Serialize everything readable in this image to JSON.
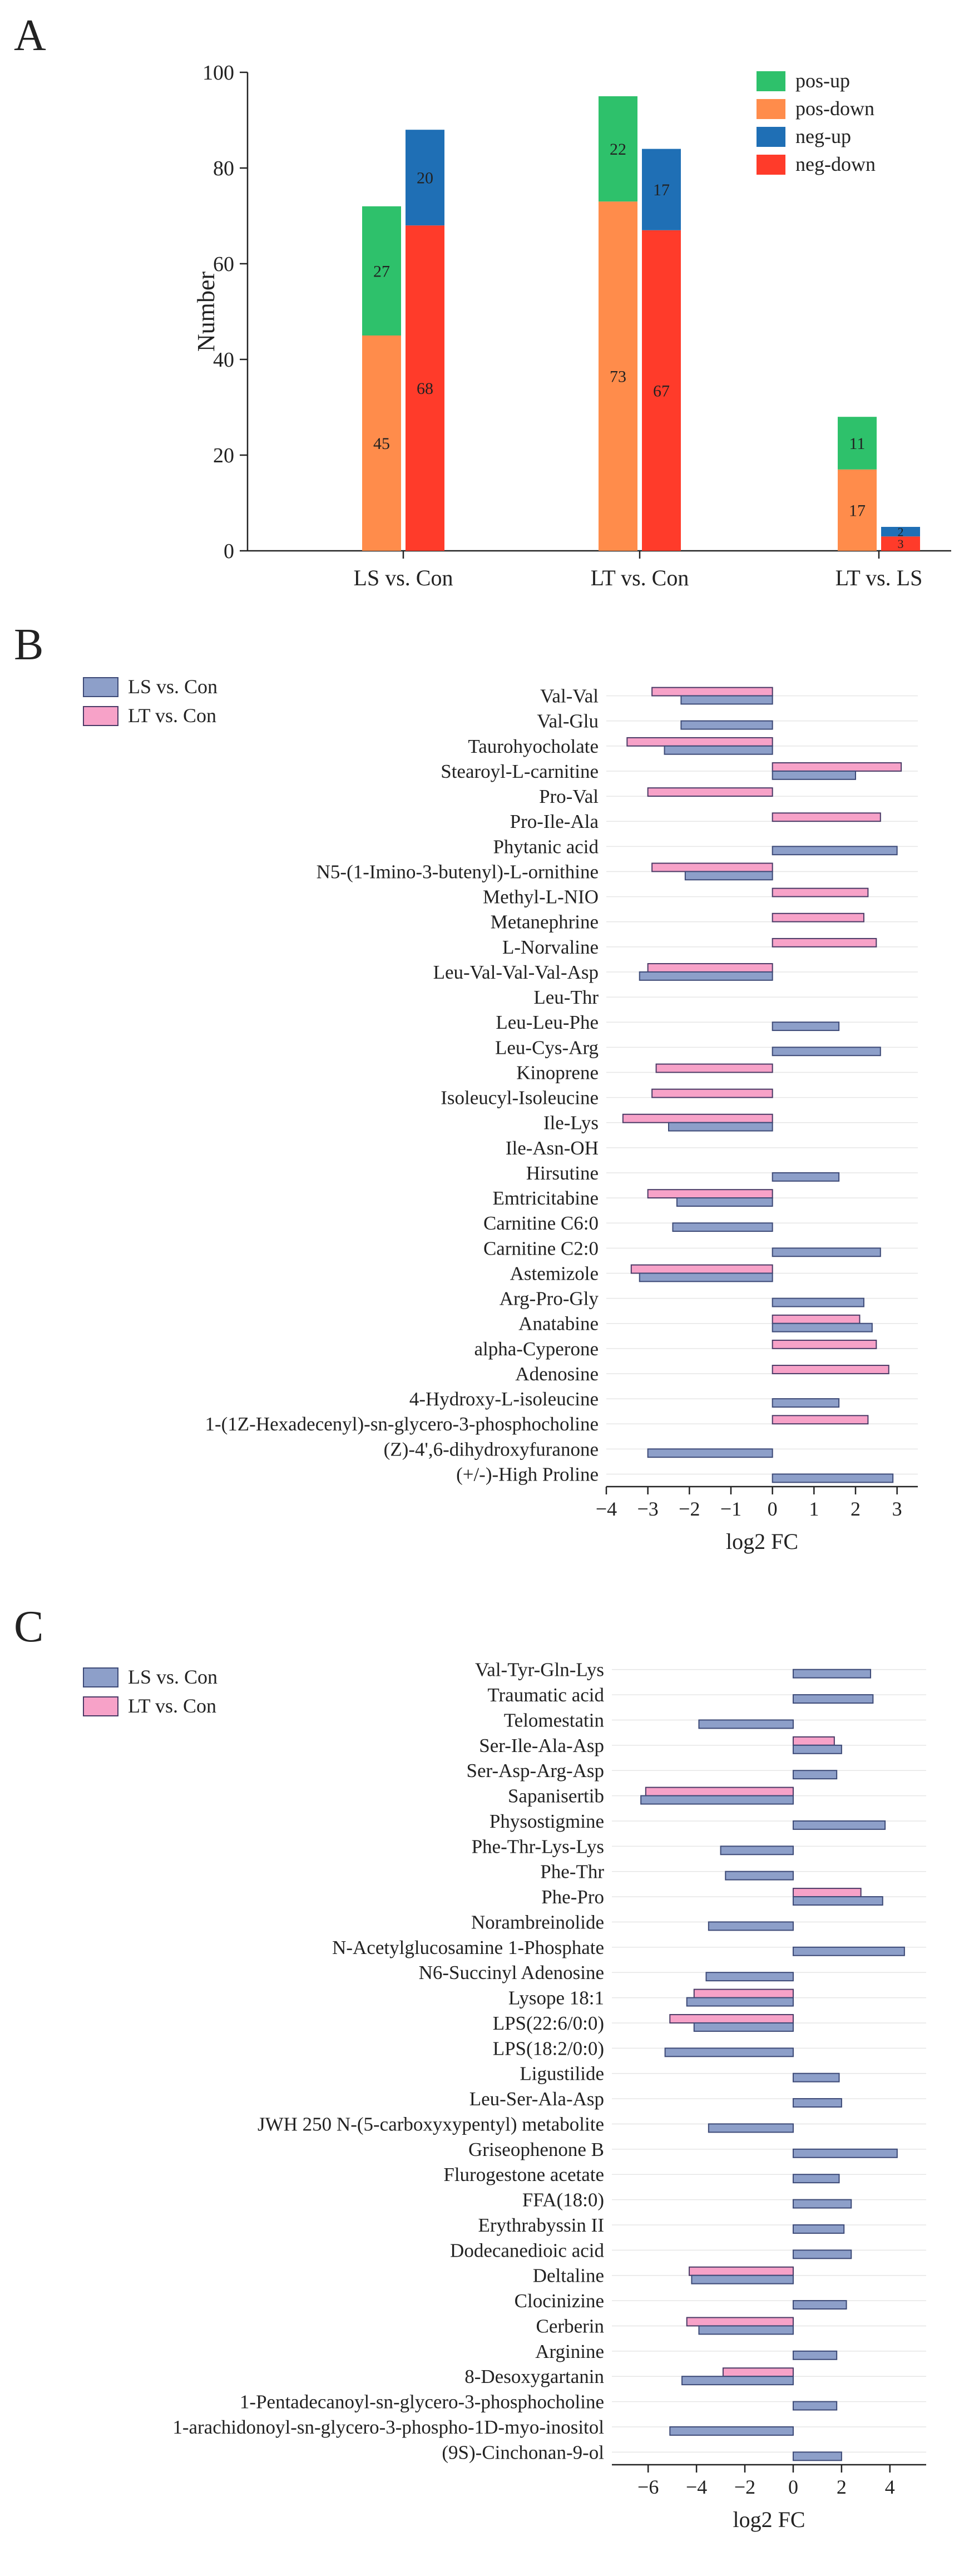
{
  "panel_labels": [
    "A",
    "B",
    "C"
  ],
  "colors": {
    "pos_up": "#2ec16b",
    "pos_down": "#ff8c4b",
    "neg_up": "#1f6fb5",
    "neg_down": "#ff3b2a",
    "ls_bar": "#8d9fc9",
    "lt_bar": "#f7a2c8"
  },
  "chart_data": [
    {
      "type": "bar",
      "stacked": true,
      "ylabel": "Number",
      "ylim": [
        0,
        100
      ],
      "yticks": [
        0,
        20,
        40,
        60,
        80,
        100
      ],
      "categories": [
        "LS vs. Con",
        "LT vs. Con",
        "LT vs. LS"
      ],
      "legend": [
        "pos-up",
        "pos-down",
        "neg-up",
        "neg-down"
      ],
      "stacks": [
        {
          "name": "pos",
          "series": [
            {
              "name": "pos-down",
              "values": [
                45,
                73,
                17
              ]
            },
            {
              "name": "pos-up",
              "values": [
                27,
                22,
                11
              ]
            }
          ]
        },
        {
          "name": "neg",
          "series": [
            {
              "name": "neg-down",
              "values": [
                68,
                67,
                3
              ]
            },
            {
              "name": "neg-up",
              "values": [
                20,
                17,
                2
              ]
            }
          ]
        }
      ]
    },
    {
      "type": "bar",
      "orientation": "horizontal",
      "xlabel": "log2 FC",
      "xlim": [
        -4,
        3.5
      ],
      "xticks": [
        -4,
        -3,
        -2,
        -1,
        0,
        1,
        2,
        3
      ],
      "series_names": [
        "LS vs. Con",
        "LT vs. Con"
      ],
      "categories": [
        "Val-Val",
        "Val-Glu",
        "Taurohyocholate",
        "Stearoyl-L-carnitine",
        "Pro-Val",
        "Pro-Ile-Ala",
        "Phytanic acid",
        "N5-(1-Imino-3-butenyl)-L-ornithine",
        "Methyl-L-NIO",
        "Metanephrine",
        "L-Norvaline",
        "Leu-Val-Val-Val-Asp",
        "Leu-Thr",
        "Leu-Leu-Phe",
        "Leu-Cys-Arg",
        "Kinoprene",
        "Isoleucyl-Isoleucine",
        "Ile-Lys",
        "Ile-Asn-OH",
        "Hirsutine",
        "Emtricitabine",
        "Carnitine C6:0",
        "Carnitine C2:0",
        "Astemizole",
        "Arg-Pro-Gly",
        "Anatabine",
        "alpha-Cyperone",
        "Adenosine",
        "4-Hydroxy-L-isoleucine",
        "1-(1Z-Hexadecenyl)-sn-glycero-3-phosphocholine",
        "(Z)-4',6-dihydroxyfuranone",
        "(+/-)-High Proline"
      ],
      "series": [
        {
          "name": "LS vs. Con",
          "values": [
            -2.2,
            -2.2,
            -2.6,
            2.0,
            null,
            null,
            3.0,
            -2.1,
            null,
            null,
            null,
            -3.2,
            null,
            1.6,
            2.6,
            null,
            null,
            -2.5,
            null,
            1.6,
            -2.3,
            -2.4,
            2.6,
            -3.2,
            2.2,
            2.4,
            null,
            null,
            1.6,
            null,
            -3.0,
            2.9
          ]
        },
        {
          "name": "LT vs. Con",
          "values": [
            -2.9,
            null,
            -3.5,
            3.1,
            -3.0,
            2.6,
            null,
            -2.9,
            2.3,
            2.2,
            2.5,
            -3.0,
            null,
            null,
            null,
            -2.8,
            -2.9,
            -3.6,
            null,
            null,
            -3.0,
            null,
            null,
            -3.4,
            null,
            2.1,
            2.5,
            2.8,
            null,
            2.3,
            null,
            null
          ]
        }
      ]
    },
    {
      "type": "bar",
      "orientation": "horizontal",
      "xlabel": "log2 FC",
      "xlim": [
        -7.5,
        5.5
      ],
      "xticks": [
        -6,
        -4,
        -2,
        0,
        2,
        4
      ],
      "series_names": [
        "LS vs. Con",
        "LT vs. Con"
      ],
      "categories": [
        "Val-Tyr-Gln-Lys",
        "Traumatic acid",
        "Telomestatin",
        "Ser-Ile-Ala-Asp",
        "Ser-Asp-Arg-Asp",
        "Sapanisertib",
        "Physostigmine",
        "Phe-Thr-Lys-Lys",
        "Phe-Thr",
        "Phe-Pro",
        "Norambreinolide",
        "N-Acetylglucosamine 1-Phosphate",
        "N6-Succinyl Adenosine",
        "Lysope 18:1",
        "LPS(22:6/0:0)",
        "LPS(18:2/0:0)",
        "Ligustilide",
        "Leu-Ser-Ala-Asp",
        "JWH 250 N-(5-carboxyxypentyl) metabolite",
        "Griseophenone B",
        "Flurogestone acetate",
        "FFA(18:0)",
        "Erythrabyssin II",
        "Dodecanedioic acid",
        "Deltaline",
        "Clocinizine",
        "Cerberin",
        "Arginine",
        "8-Desoxygartanin",
        "1-Pentadecanoyl-sn-glycero-3-phosphocholine",
        "1-arachidonoyl-sn-glycero-3-phospho-1D-myo-inositol",
        "(9S)-Cinchonan-9-ol"
      ],
      "series": [
        {
          "name": "LS vs. Con",
          "values": [
            3.2,
            3.3,
            -3.9,
            2.0,
            1.8,
            -6.3,
            3.8,
            -3.0,
            -2.8,
            3.7,
            -3.5,
            4.6,
            -3.6,
            -4.4,
            -4.1,
            -5.3,
            1.9,
            2.0,
            -3.5,
            4.3,
            1.9,
            2.4,
            2.1,
            2.4,
            -4.2,
            2.2,
            -3.9,
            1.8,
            -4.6,
            1.8,
            -5.1,
            2.0
          ]
        },
        {
          "name": "LT vs. Con",
          "values": [
            null,
            null,
            null,
            1.7,
            null,
            -6.1,
            null,
            null,
            null,
            2.8,
            null,
            null,
            null,
            -4.1,
            -5.1,
            null,
            null,
            null,
            null,
            null,
            null,
            null,
            null,
            null,
            -4.3,
            null,
            -4.4,
            null,
            -2.9,
            null,
            null,
            null
          ]
        }
      ]
    }
  ]
}
